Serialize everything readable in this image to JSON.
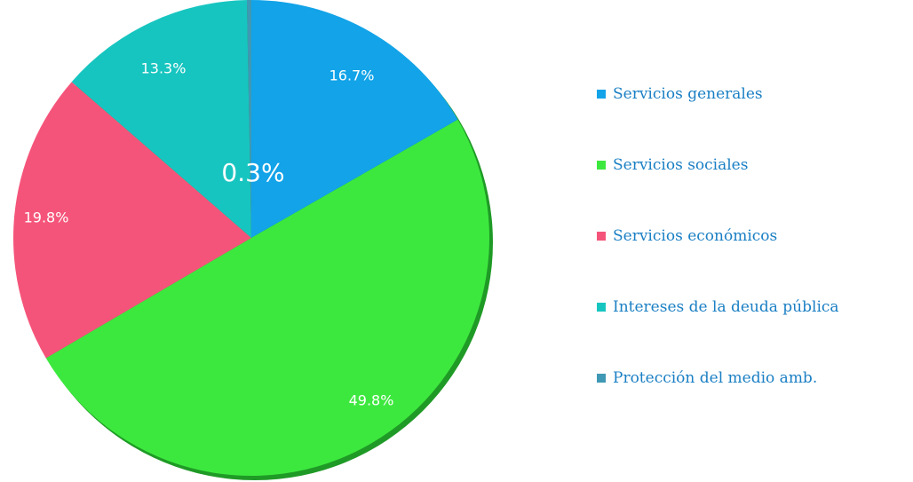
{
  "chart_data": {
    "type": "pie",
    "title": "",
    "slices": [
      {
        "name": "Servicios generales",
        "value": 16.7,
        "label": "16.7%",
        "color": "#12a3e8"
      },
      {
        "name": "Servicios sociales",
        "value": 49.8,
        "label": "49.8%",
        "color": "#3de83e"
      },
      {
        "name": "Servicios económicos",
        "value": 19.8,
        "label": "19.8%",
        "color": "#f5547a"
      },
      {
        "name": "Intereses de la deuda pública",
        "value": 13.3,
        "label": "13.3%",
        "color": "#17c5c0"
      },
      {
        "name": "Protección del medio amb.",
        "value": 0.3,
        "label": "0.3%",
        "color": "#3f98b4"
      }
    ],
    "legend_position": "right",
    "start_angle_deg": 0,
    "direction": "clockwise"
  }
}
